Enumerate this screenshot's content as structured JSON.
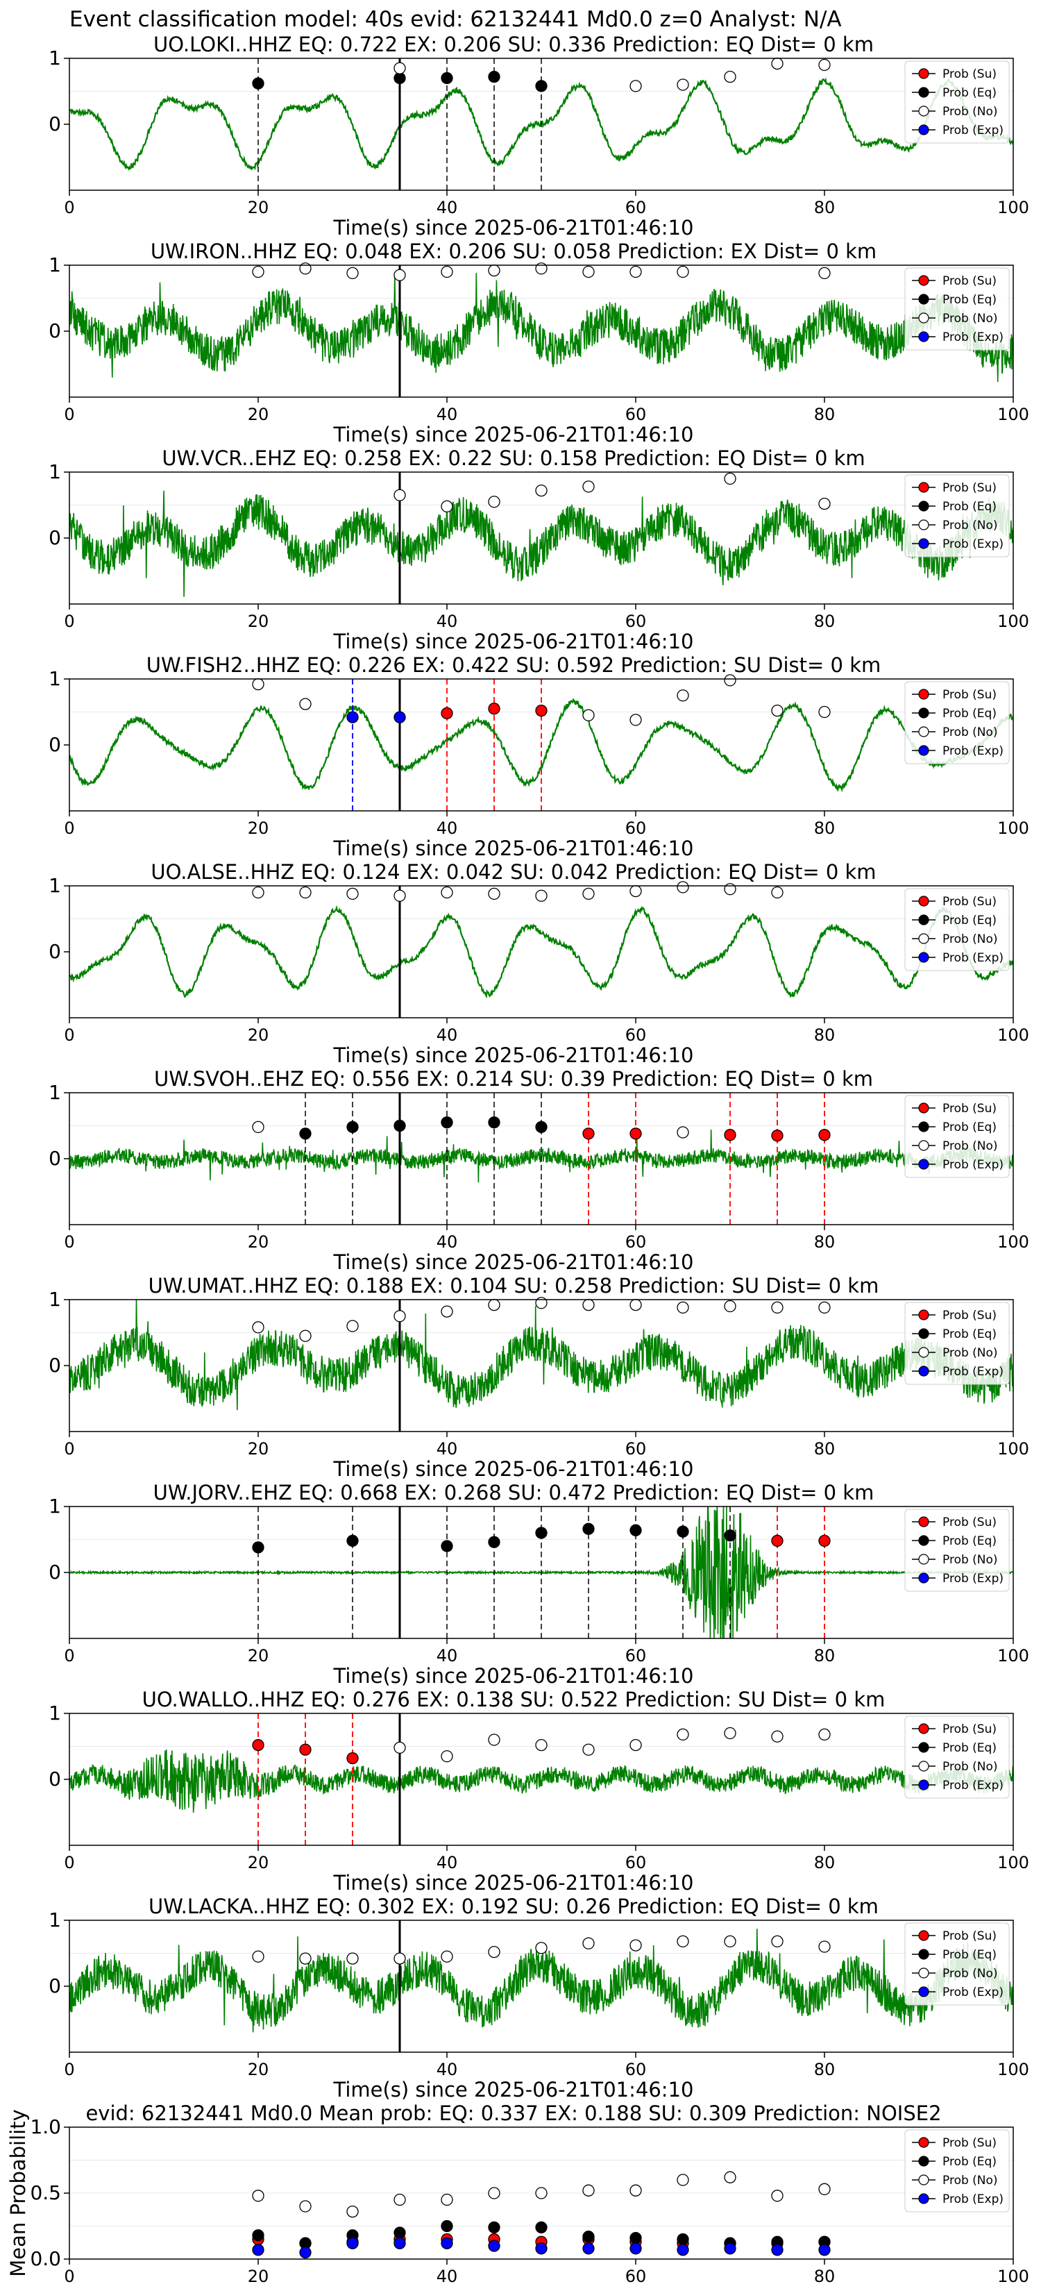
{
  "figure": {
    "suptitle": "Event classification model: 40s evid: 62132441 Md0.0 z=0 Analyst: N/A"
  },
  "colors": {
    "su": "#ff0000",
    "eq": "#000000",
    "no": "#ffffff",
    "exp": "#0000ff",
    "trace": "#008000",
    "origin_line": "#000000"
  },
  "legend": {
    "placement": "right",
    "entries": [
      "Prob (Su)",
      "Prob (Eq)",
      "Prob (No)",
      "Prob (Exp)"
    ]
  },
  "chart_data": [
    {
      "type": "line",
      "title": "UO.LOKI..HHZ   EQ: 0.722  EX: 0.206  SU: 0.336   Prediction: EQ    Dist= 0 km",
      "xlabel": "Time(s) since 2025-06-21T01:46:10",
      "ylabel": "",
      "xlim": [
        0,
        100
      ],
      "ylim": [
        -1,
        1
      ],
      "xticks": [
        0,
        20,
        40,
        60,
        80,
        100
      ],
      "yticks": [
        0,
        1
      ],
      "trace_style": "smooth",
      "origin_time": 35,
      "series": [
        {
          "name": "Prob (Eq)",
          "x": [
            20,
            35,
            40,
            45,
            50
          ],
          "values": [
            0.62,
            0.7,
            0.7,
            0.72,
            0.58
          ]
        },
        {
          "name": "Prob (No)",
          "x": [
            35,
            60,
            65,
            70,
            75,
            80
          ],
          "values": [
            0.85,
            0.58,
            0.6,
            0.72,
            0.92,
            0.9
          ]
        }
      ],
      "pick_lines": [
        {
          "x": 20,
          "class": "eq"
        },
        {
          "x": 40,
          "class": "eq"
        },
        {
          "x": 45,
          "class": "eq"
        },
        {
          "x": 50,
          "class": "eq"
        }
      ]
    },
    {
      "type": "line",
      "title": "UW.IRON..HHZ   EQ: 0.048  EX: 0.206  SU: 0.058   Prediction: EX    Dist= 0 km",
      "xlabel": "Time(s) since 2025-06-21T01:46:10",
      "ylabel": "",
      "xlim": [
        0,
        100
      ],
      "ylim": [
        -1,
        1
      ],
      "xticks": [
        0,
        20,
        40,
        60,
        80,
        100
      ],
      "yticks": [
        0,
        1
      ],
      "trace_style": "noisy",
      "origin_time": 35,
      "series": [
        {
          "name": "Prob (No)",
          "x": [
            20,
            25,
            30,
            35,
            40,
            45,
            50,
            55,
            60,
            65,
            80
          ],
          "values": [
            0.9,
            0.95,
            0.88,
            0.85,
            0.9,
            0.92,
            0.95,
            0.9,
            0.9,
            0.9,
            0.88
          ]
        }
      ],
      "pick_lines": []
    },
    {
      "type": "line",
      "title": "UW.VCR..EHZ   EQ: 0.258  EX: 0.22  SU: 0.158   Prediction: EQ    Dist= 0 km",
      "xlabel": "Time(s) since 2025-06-21T01:46:10",
      "ylabel": "",
      "xlim": [
        0,
        100
      ],
      "ylim": [
        -1,
        1
      ],
      "xticks": [
        0,
        20,
        40,
        60,
        80,
        100
      ],
      "yticks": [
        0,
        1
      ],
      "trace_style": "noisy",
      "origin_time": 35,
      "series": [
        {
          "name": "Prob (No)",
          "x": [
            35,
            40,
            45,
            50,
            55,
            70,
            80
          ],
          "values": [
            0.65,
            0.48,
            0.55,
            0.72,
            0.78,
            0.9,
            0.52
          ]
        }
      ],
      "pick_lines": []
    },
    {
      "type": "line",
      "title": "UW.FISH2..HHZ   EQ: 0.226  EX: 0.422  SU: 0.592   Prediction: SU    Dist= 0 km",
      "xlabel": "Time(s) since 2025-06-21T01:46:10",
      "ylabel": "",
      "xlim": [
        0,
        100
      ],
      "ylim": [
        -1,
        1
      ],
      "xticks": [
        0,
        20,
        40,
        60,
        80,
        100
      ],
      "yticks": [
        0,
        1
      ],
      "trace_style": "smooth",
      "origin_time": 35,
      "series": [
        {
          "name": "Prob (Su)",
          "x": [
            40,
            45,
            50
          ],
          "values": [
            0.48,
            0.55,
            0.52
          ]
        },
        {
          "name": "Prob (Exp)",
          "x": [
            30,
            35
          ],
          "values": [
            0.42,
            0.42
          ]
        },
        {
          "name": "Prob (No)",
          "x": [
            20,
            25,
            55,
            60,
            65,
            70,
            75,
            80
          ],
          "values": [
            0.92,
            0.62,
            0.45,
            0.38,
            0.75,
            0.98,
            0.52,
            0.5
          ]
        }
      ],
      "pick_lines": [
        {
          "x": 30,
          "class": "exp"
        },
        {
          "x": 40,
          "class": "su"
        },
        {
          "x": 45,
          "class": "su"
        },
        {
          "x": 50,
          "class": "su"
        }
      ]
    },
    {
      "type": "line",
      "title": "UO.ALSE..HHZ   EQ: 0.124  EX: 0.042  SU: 0.042   Prediction: EQ    Dist= 0 km",
      "xlabel": "Time(s) since 2025-06-21T01:46:10",
      "ylabel": "",
      "xlim": [
        0,
        100
      ],
      "ylim": [
        -1,
        1
      ],
      "xticks": [
        0,
        20,
        40,
        60,
        80,
        100
      ],
      "yticks": [
        0,
        1
      ],
      "trace_style": "smooth",
      "origin_time": 35,
      "series": [
        {
          "name": "Prob (No)",
          "x": [
            20,
            25,
            30,
            35,
            40,
            45,
            50,
            55,
            60,
            65,
            70,
            75
          ],
          "values": [
            0.9,
            0.9,
            0.88,
            0.85,
            0.9,
            0.88,
            0.85,
            0.88,
            0.92,
            0.98,
            0.95,
            0.9
          ]
        }
      ],
      "pick_lines": []
    },
    {
      "type": "line",
      "title": "UW.SVOH..EHZ   EQ: 0.556  EX: 0.214  SU: 0.39   Prediction: EQ    Dist= 0 km",
      "xlabel": "Time(s) since 2025-06-21T01:46:10",
      "ylabel": "",
      "xlim": [
        0,
        100
      ],
      "ylim": [
        -1,
        1
      ],
      "xticks": [
        0,
        20,
        40,
        60,
        80,
        100
      ],
      "yticks": [
        0,
        1
      ],
      "trace_style": "spiky",
      "origin_time": 35,
      "series": [
        {
          "name": "Prob (Su)",
          "x": [
            55,
            60,
            70,
            75,
            80
          ],
          "values": [
            0.38,
            0.38,
            0.36,
            0.35,
            0.36
          ]
        },
        {
          "name": "Prob (Eq)",
          "x": [
            25,
            30,
            35,
            40,
            45,
            50
          ],
          "values": [
            0.38,
            0.48,
            0.5,
            0.55,
            0.55,
            0.48
          ]
        },
        {
          "name": "Prob (No)",
          "x": [
            20,
            65
          ],
          "values": [
            0.48,
            0.4
          ]
        }
      ],
      "pick_lines": [
        {
          "x": 25,
          "class": "eq"
        },
        {
          "x": 30,
          "class": "eq"
        },
        {
          "x": 40,
          "class": "eq"
        },
        {
          "x": 45,
          "class": "eq"
        },
        {
          "x": 50,
          "class": "eq"
        },
        {
          "x": 55,
          "class": "su"
        },
        {
          "x": 60,
          "class": "su"
        },
        {
          "x": 70,
          "class": "su"
        },
        {
          "x": 75,
          "class": "su"
        },
        {
          "x": 80,
          "class": "su"
        }
      ]
    },
    {
      "type": "line",
      "title": "UW.UMAT..HHZ   EQ: 0.188  EX: 0.104  SU: 0.258   Prediction: SU    Dist= 0 km",
      "xlabel": "Time(s) since 2025-06-21T01:46:10",
      "ylabel": "",
      "xlim": [
        0,
        100
      ],
      "ylim": [
        -1,
        1
      ],
      "xticks": [
        0,
        20,
        40,
        60,
        80,
        100
      ],
      "yticks": [
        0,
        1
      ],
      "trace_style": "noisy",
      "origin_time": 35,
      "series": [
        {
          "name": "Prob (No)",
          "x": [
            20,
            25,
            30,
            35,
            40,
            45,
            50,
            55,
            60,
            65,
            70,
            75,
            80
          ],
          "values": [
            0.58,
            0.45,
            0.6,
            0.75,
            0.82,
            0.92,
            0.95,
            0.92,
            0.92,
            0.88,
            0.9,
            0.88,
            0.88
          ]
        }
      ],
      "pick_lines": []
    },
    {
      "type": "line",
      "title": "UW.JORV..EHZ   EQ: 0.668  EX: 0.268  SU: 0.472   Prediction: EQ    Dist= 0 km",
      "xlabel": "Time(s) since 2025-06-21T01:46:10",
      "ylabel": "",
      "xlim": [
        0,
        100
      ],
      "ylim": [
        -1,
        1
      ],
      "xticks": [
        0,
        20,
        40,
        60,
        80,
        100
      ],
      "yticks": [
        0,
        1
      ],
      "trace_style": "burst",
      "origin_time": 35,
      "series": [
        {
          "name": "Prob (Su)",
          "x": [
            75,
            80
          ],
          "values": [
            0.48,
            0.48
          ]
        },
        {
          "name": "Prob (Eq)",
          "x": [
            20,
            30,
            40,
            45,
            50,
            55,
            60,
            65,
            70
          ],
          "values": [
            0.38,
            0.48,
            0.4,
            0.46,
            0.6,
            0.66,
            0.64,
            0.62,
            0.56
          ]
        }
      ],
      "pick_lines": [
        {
          "x": 20,
          "class": "eq"
        },
        {
          "x": 30,
          "class": "eq"
        },
        {
          "x": 40,
          "class": "eq"
        },
        {
          "x": 45,
          "class": "eq"
        },
        {
          "x": 50,
          "class": "eq"
        },
        {
          "x": 55,
          "class": "eq"
        },
        {
          "x": 60,
          "class": "eq"
        },
        {
          "x": 65,
          "class": "eq"
        },
        {
          "x": 70,
          "class": "eq"
        },
        {
          "x": 75,
          "class": "su"
        },
        {
          "x": 80,
          "class": "su"
        }
      ]
    },
    {
      "type": "line",
      "title": "UO.WALLO..HHZ   EQ: 0.276  EX: 0.138  SU: 0.522   Prediction: SU    Dist= 0 km",
      "xlabel": "Time(s) since 2025-06-21T01:46:10",
      "ylabel": "",
      "xlim": [
        0,
        100
      ],
      "ylim": [
        -1,
        1
      ],
      "xticks": [
        0,
        20,
        40,
        60,
        80,
        100
      ],
      "yticks": [
        0,
        1
      ],
      "trace_style": "earlyburst",
      "origin_time": 35,
      "series": [
        {
          "name": "Prob (Su)",
          "x": [
            20,
            25,
            30
          ],
          "values": [
            0.52,
            0.45,
            0.32
          ]
        },
        {
          "name": "Prob (No)",
          "x": [
            35,
            40,
            45,
            50,
            55,
            60,
            65,
            70,
            75,
            80
          ],
          "values": [
            0.48,
            0.35,
            0.6,
            0.52,
            0.45,
            0.52,
            0.68,
            0.7,
            0.65,
            0.68
          ]
        }
      ],
      "pick_lines": [
        {
          "x": 20,
          "class": "su"
        },
        {
          "x": 25,
          "class": "su"
        },
        {
          "x": 30,
          "class": "su"
        }
      ]
    },
    {
      "type": "line",
      "title": "UW.LACKA..HHZ   EQ: 0.302  EX: 0.192  SU: 0.26   Prediction: EQ    Dist= 0 km",
      "xlabel": "Time(s) since 2025-06-21T01:46:10",
      "ylabel": "",
      "xlim": [
        0,
        100
      ],
      "ylim": [
        -1,
        1
      ],
      "xticks": [
        0,
        20,
        40,
        60,
        80,
        100
      ],
      "yticks": [
        0,
        1
      ],
      "trace_style": "noisy",
      "origin_time": 35,
      "series": [
        {
          "name": "Prob (No)",
          "x": [
            20,
            25,
            30,
            35,
            40,
            45,
            50,
            55,
            60,
            65,
            70,
            75,
            80
          ],
          "values": [
            0.45,
            0.42,
            0.42,
            0.42,
            0.45,
            0.52,
            0.58,
            0.65,
            0.62,
            0.68,
            0.68,
            0.68,
            0.6
          ]
        }
      ],
      "pick_lines": []
    },
    {
      "type": "scatter",
      "title": "evid: 62132441  Md0.0   Mean prob:   EQ: 0.337  EX: 0.188  SU: 0.309   Prediction: NOISE2",
      "xlabel": "",
      "ylabel": "Mean Probability",
      "xlim": [
        0,
        100
      ],
      "ylim": [
        0,
        1
      ],
      "xticks": [
        0,
        20,
        40,
        60,
        80,
        100
      ],
      "yticks": [
        0.0,
        0.5,
        1.0
      ],
      "series": [
        {
          "name": "Prob (Su)",
          "x": [
            20,
            25,
            30,
            35,
            40,
            45,
            50,
            55,
            60,
            65,
            70,
            75,
            80
          ],
          "values": [
            0.15,
            0.12,
            0.13,
            0.15,
            0.15,
            0.15,
            0.13,
            0.15,
            0.13,
            0.12,
            0.12,
            0.12,
            0.13
          ]
        },
        {
          "name": "Prob (Eq)",
          "x": [
            20,
            25,
            30,
            35,
            40,
            45,
            50,
            55,
            60,
            65,
            70,
            75,
            80
          ],
          "values": [
            0.18,
            0.12,
            0.18,
            0.2,
            0.25,
            0.24,
            0.24,
            0.17,
            0.16,
            0.15,
            0.12,
            0.13,
            0.13
          ]
        },
        {
          "name": "Prob (No)",
          "x": [
            20,
            25,
            30,
            35,
            40,
            45,
            50,
            55,
            60,
            65,
            70,
            75,
            80
          ],
          "values": [
            0.48,
            0.4,
            0.36,
            0.45,
            0.45,
            0.5,
            0.5,
            0.52,
            0.52,
            0.6,
            0.62,
            0.48,
            0.53
          ]
        },
        {
          "name": "Prob (Exp)",
          "x": [
            20,
            25,
            30,
            35,
            40,
            45,
            50,
            55,
            60,
            65,
            70,
            75,
            80
          ],
          "values": [
            0.07,
            0.05,
            0.12,
            0.12,
            0.12,
            0.1,
            0.08,
            0.08,
            0.08,
            0.07,
            0.08,
            0.07,
            0.07
          ]
        }
      ],
      "pick_lines": []
    }
  ]
}
